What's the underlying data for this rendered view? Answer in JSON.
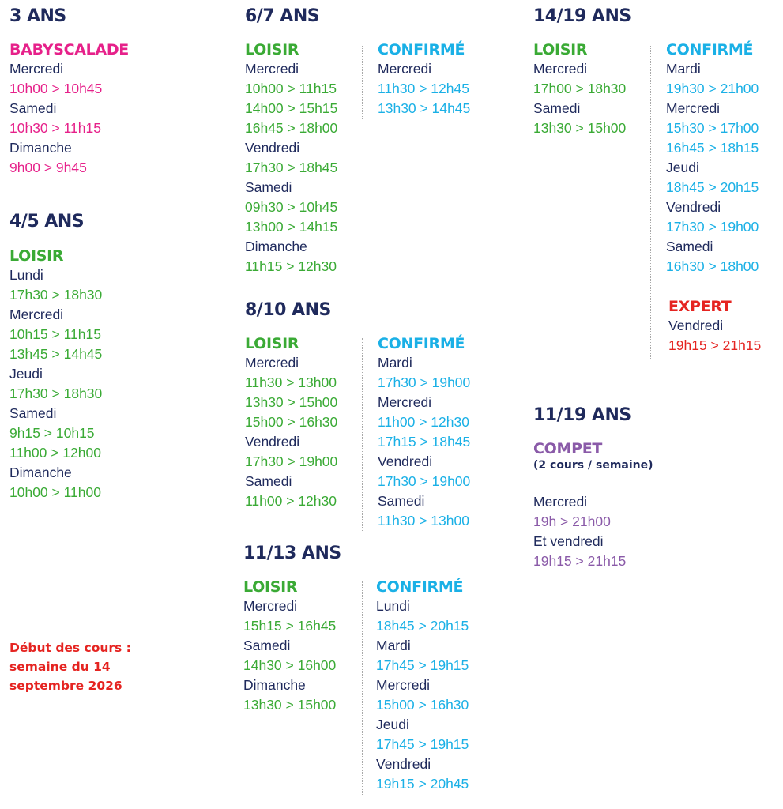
{
  "theme": {
    "navy": "#1f2a5c",
    "green": "#3aaa35",
    "cyan": "#1ab0e6",
    "pink": "#e6218a",
    "red": "#e52421",
    "purple": "#8a5aa8"
  },
  "sections": [
    {
      "age": "3 ANS",
      "groups": [
        {
          "name": "BABYSCALADE",
          "rows": [
            {
              "t": "day",
              "v": "Mercredi"
            },
            {
              "t": "time",
              "v": "10h00 > 10h45"
            },
            {
              "t": "day",
              "v": "Samedi"
            },
            {
              "t": "time",
              "v": "10h30 > 11h15"
            },
            {
              "t": "day",
              "v": "Dimanche"
            },
            {
              "t": "time",
              "v": "9h00 > 9h45"
            }
          ]
        }
      ]
    },
    {
      "age": "4/5 ANS",
      "groups": [
        {
          "name": "LOISIR",
          "rows": [
            {
              "t": "day",
              "v": "Lundi"
            },
            {
              "t": "time",
              "v": "17h30 > 18h30"
            },
            {
              "t": "day",
              "v": "Mercredi"
            },
            {
              "t": "time",
              "v": "10h15 > 11h15"
            },
            {
              "t": "time",
              "v": "13h45 > 14h45"
            },
            {
              "t": "day",
              "v": "Jeudi"
            },
            {
              "t": "time",
              "v": "17h30 > 18h30"
            },
            {
              "t": "day",
              "v": "Samedi"
            },
            {
              "t": "time",
              "v": "9h15 > 10h15"
            },
            {
              "t": "time",
              "v": "11h00 > 12h00"
            },
            {
              "t": "day",
              "v": "Dimanche"
            },
            {
              "t": "time",
              "v": "10h00 > 11h00"
            }
          ]
        }
      ]
    },
    {
      "age": "6/7 ANS",
      "groups": [
        {
          "name": "LOISIR",
          "rows": [
            {
              "t": "day",
              "v": "Mercredi"
            },
            {
              "t": "time",
              "v": "10h00 > 11h15"
            },
            {
              "t": "time",
              "v": "14h00 > 15h15"
            },
            {
              "t": "time",
              "v": "16h45 > 18h00"
            },
            {
              "t": "day",
              "v": "Vendredi"
            },
            {
              "t": "time",
              "v": "17h30 > 18h45"
            },
            {
              "t": "day",
              "v": "Samedi"
            },
            {
              "t": "time",
              "v": "09h30 > 10h45"
            },
            {
              "t": "time",
              "v": "13h00 > 14h15"
            },
            {
              "t": "day",
              "v": "Dimanche"
            },
            {
              "t": "time",
              "v": "11h15 > 12h30"
            }
          ]
        },
        {
          "name": "CONFIRMÉ",
          "rows": [
            {
              "t": "day",
              "v": "Mercredi"
            },
            {
              "t": "time",
              "v": "11h30 > 12h45"
            },
            {
              "t": "time",
              "v": "13h30 > 14h45"
            }
          ]
        }
      ]
    },
    {
      "age": "8/10 ANS",
      "groups": [
        {
          "name": "LOISIR",
          "rows": [
            {
              "t": "day",
              "v": "Mercredi"
            },
            {
              "t": "time",
              "v": "11h30 > 13h00"
            },
            {
              "t": "time",
              "v": "13h30 > 15h00"
            },
            {
              "t": "time",
              "v": "15h00 > 16h30"
            },
            {
              "t": "day",
              "v": "Vendredi"
            },
            {
              "t": "time",
              "v": "17h30 > 19h00"
            },
            {
              "t": "day",
              "v": "Samedi"
            },
            {
              "t": "time",
              "v": "11h00 > 12h30"
            }
          ]
        },
        {
          "name": "CONFIRMÉ",
          "rows": [
            {
              "t": "day",
              "v": "Mardi"
            },
            {
              "t": "time",
              "v": "17h30 > 19h00"
            },
            {
              "t": "day",
              "v": "Mercredi"
            },
            {
              "t": "time",
              "v": "11h00 > 12h30"
            },
            {
              "t": "time",
              "v": "17h15 > 18h45"
            },
            {
              "t": "day",
              "v": "Vendredi"
            },
            {
              "t": "time",
              "v": "17h30 > 19h00"
            },
            {
              "t": "day",
              "v": "Samedi"
            },
            {
              "t": "time",
              "v": "11h30 > 13h00"
            }
          ]
        }
      ]
    },
    {
      "age": "11/13 ANS",
      "groups": [
        {
          "name": "LOISIR",
          "rows": [
            {
              "t": "day",
              "v": "Mercredi"
            },
            {
              "t": "time",
              "v": "15h15 > 16h45"
            },
            {
              "t": "day",
              "v": "Samedi"
            },
            {
              "t": "time",
              "v": "14h30 > 16h00"
            },
            {
              "t": "day",
              "v": "Dimanche"
            },
            {
              "t": "time",
              "v": "13h30 > 15h00"
            }
          ]
        },
        {
          "name": "CONFIRMÉ",
          "rows": [
            {
              "t": "day",
              "v": "Lundi"
            },
            {
              "t": "time",
              "v": "18h45 > 20h15"
            },
            {
              "t": "day",
              "v": "Mardi"
            },
            {
              "t": "time",
              "v": "17h45 > 19h15"
            },
            {
              "t": "day",
              "v": "Mercredi"
            },
            {
              "t": "time",
              "v": "15h00 > 16h30"
            },
            {
              "t": "day",
              "v": "Jeudi"
            },
            {
              "t": "time",
              "v": "17h45 > 19h15"
            },
            {
              "t": "day",
              "v": "Vendredi"
            },
            {
              "t": "time",
              "v": "19h15 > 20h45"
            }
          ]
        }
      ]
    },
    {
      "age": "14/19 ANS",
      "groups": [
        {
          "name": "LOISIR",
          "rows": [
            {
              "t": "day",
              "v": "Mercredi"
            },
            {
              "t": "time",
              "v": "17h00 > 18h30"
            },
            {
              "t": "day",
              "v": "Samedi"
            },
            {
              "t": "time",
              "v": "13h30 > 15h00"
            }
          ]
        },
        {
          "name": "CONFIRMÉ",
          "rows": [
            {
              "t": "day",
              "v": "Mardi"
            },
            {
              "t": "time",
              "v": "19h30 > 21h00"
            },
            {
              "t": "day",
              "v": "Mercredi"
            },
            {
              "t": "time",
              "v": "15h30 > 17h00"
            },
            {
              "t": "time",
              "v": "16h45 > 18h15"
            },
            {
              "t": "day",
              "v": "Jeudi"
            },
            {
              "t": "time",
              "v": "18h45 > 20h15"
            },
            {
              "t": "day",
              "v": "Vendredi"
            },
            {
              "t": "time",
              "v": "17h30 > 19h00"
            },
            {
              "t": "day",
              "v": "Samedi"
            },
            {
              "t": "time",
              "v": "16h30 > 18h00"
            }
          ]
        },
        {
          "name": "EXPERT",
          "rows": [
            {
              "t": "day",
              "v": "Vendredi"
            },
            {
              "t": "time",
              "v": "19h15 > 21h15"
            }
          ]
        }
      ]
    },
    {
      "age": "11/19 ANS",
      "groups": [
        {
          "name": "COMPET",
          "subtitle": "(2 cours / semaine)",
          "rows": [
            {
              "t": "gap",
              "v": ""
            },
            {
              "t": "day",
              "v": "Mercredi"
            },
            {
              "t": "time",
              "v": "19h > 21h00"
            },
            {
              "t": "day",
              "v": "Et vendredi"
            },
            {
              "t": "time",
              "v": "19h15  > 21h15"
            }
          ]
        }
      ]
    }
  ],
  "note": {
    "lines": [
      "Début des cours :",
      "semaine du 14",
      "septembre 2026"
    ]
  }
}
